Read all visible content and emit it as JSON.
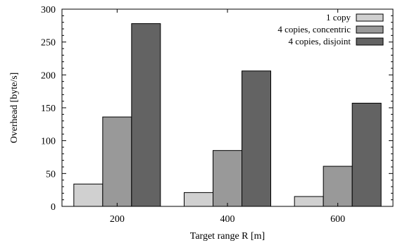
{
  "chart_data": {
    "type": "bar",
    "title": "",
    "xlabel": "Target range R [m]",
    "ylabel": "Overhead [byte/s]",
    "categories": [
      "200",
      "400",
      "600"
    ],
    "ylim": [
      0,
      300
    ],
    "yticks": [
      0,
      50,
      100,
      150,
      200,
      250,
      300
    ],
    "legend_position": "top-right",
    "grid": false,
    "series": [
      {
        "name": "1 copy",
        "color": "#d0d0d0",
        "values": [
          34,
          21,
          15
        ]
      },
      {
        "name": "4 copies, concentric",
        "color": "#999999",
        "values": [
          136,
          85,
          61
        ]
      },
      {
        "name": "4 copies, disjoint",
        "color": "#636363",
        "values": [
          278,
          206,
          157
        ]
      }
    ]
  }
}
